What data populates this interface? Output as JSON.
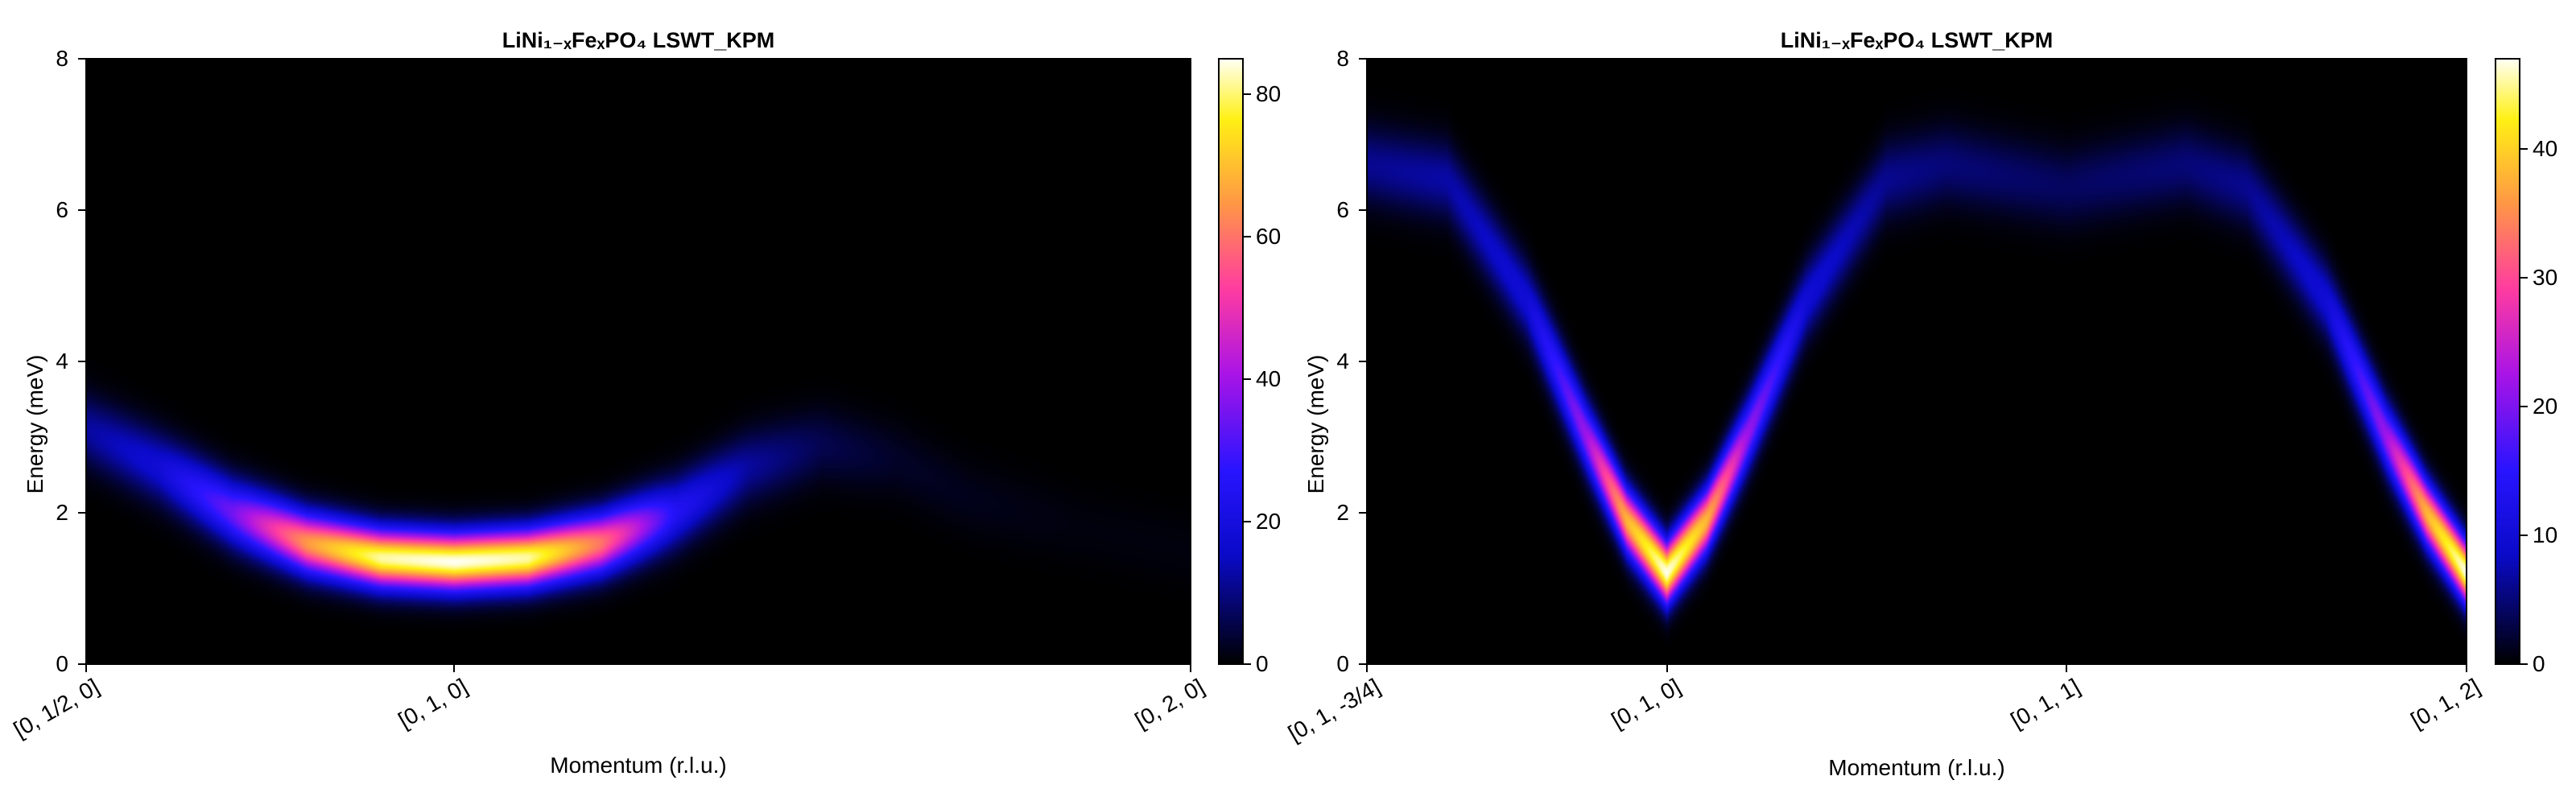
{
  "chart_data": [
    {
      "type": "heatmap",
      "title": "LiNi₁₋ₓFeₓPO₄ LSWT_KPM",
      "xlabel": "Momentum (r.l.u.)",
      "ylabel": "Energy (meV)",
      "ylim": [
        0,
        8
      ],
      "yticks": [
        "0",
        "2",
        "4",
        "6",
        "8"
      ],
      "xticks": [
        "[0, 1/2, 0]",
        "[0, 1, 0]",
        "[0, 2, 0]"
      ],
      "xtick_positions": [
        0,
        0.5,
        1.5
      ],
      "xlim": [
        0,
        1.5
      ],
      "colormap": "black-blue-magenta-yellow-white",
      "colorbar_range": [
        0,
        85
      ],
      "colorbar_ticks": [
        "0",
        "20",
        "40",
        "60",
        "80"
      ],
      "dispersion": [
        {
          "x": 0.0,
          "energy": 3.1,
          "intensity": 12
        },
        {
          "x": 0.1,
          "energy": 2.6,
          "intensity": 18
        },
        {
          "x": 0.2,
          "energy": 2.0,
          "intensity": 35
        },
        {
          "x": 0.3,
          "energy": 1.6,
          "intensity": 65
        },
        {
          "x": 0.4,
          "energy": 1.4,
          "intensity": 82
        },
        {
          "x": 0.5,
          "energy": 1.35,
          "intensity": 85
        },
        {
          "x": 0.6,
          "energy": 1.4,
          "intensity": 82
        },
        {
          "x": 0.7,
          "energy": 1.6,
          "intensity": 60
        },
        {
          "x": 0.8,
          "energy": 2.0,
          "intensity": 25
        },
        {
          "x": 0.9,
          "energy": 2.6,
          "intensity": 12
        },
        {
          "x": 1.0,
          "energy": 2.9,
          "intensity": 6
        },
        {
          "x": 1.1,
          "energy": 2.7,
          "intensity": 3
        },
        {
          "x": 1.2,
          "energy": 2.2,
          "intensity": 2
        },
        {
          "x": 1.35,
          "energy": 1.8,
          "intensity": 1
        },
        {
          "x": 1.5,
          "energy": 1.5,
          "intensity": 1
        }
      ]
    },
    {
      "type": "heatmap",
      "title": "LiNi₁₋ₓFeₓPO₄ LSWT_KPM",
      "xlabel": "Momentum (r.l.u.)",
      "ylabel": "Energy (meV)",
      "ylim": [
        0,
        8
      ],
      "yticks": [
        "0",
        "2",
        "4",
        "6",
        "8"
      ],
      "xticks": [
        "[0, 1, -3/4]",
        "[0, 1, 0]",
        "[0, 1, 1]",
        "[0, 1, 2]"
      ],
      "xtick_positions": [
        0,
        0.75,
        1.75,
        2.75
      ],
      "xlim": [
        0,
        2.75
      ],
      "colormap": "black-blue-magenta-yellow-white",
      "colorbar_range": [
        0,
        47
      ],
      "colorbar_ticks": [
        "0",
        "10",
        "20",
        "30",
        "40"
      ],
      "dispersion": [
        {
          "x": 0.0,
          "energy": 6.6,
          "intensity": 6
        },
        {
          "x": 0.2,
          "energy": 6.4,
          "intensity": 7
        },
        {
          "x": 0.4,
          "energy": 4.8,
          "intensity": 10
        },
        {
          "x": 0.55,
          "energy": 3.0,
          "intensity": 22
        },
        {
          "x": 0.65,
          "energy": 1.9,
          "intensity": 38
        },
        {
          "x": 0.75,
          "energy": 1.2,
          "intensity": 47
        },
        {
          "x": 0.85,
          "energy": 1.9,
          "intensity": 38
        },
        {
          "x": 0.95,
          "energy": 3.0,
          "intensity": 22
        },
        {
          "x": 1.1,
          "energy": 4.8,
          "intensity": 10
        },
        {
          "x": 1.3,
          "energy": 6.4,
          "intensity": 6
        },
        {
          "x": 1.45,
          "energy": 6.6,
          "intensity": 5
        },
        {
          "x": 1.75,
          "energy": 6.3,
          "intensity": 4
        },
        {
          "x": 2.05,
          "energy": 6.6,
          "intensity": 5
        },
        {
          "x": 2.2,
          "energy": 6.3,
          "intensity": 6
        },
        {
          "x": 2.4,
          "energy": 4.8,
          "intensity": 10
        },
        {
          "x": 2.55,
          "energy": 3.0,
          "intensity": 22
        },
        {
          "x": 2.65,
          "energy": 2.0,
          "intensity": 38
        },
        {
          "x": 2.75,
          "energy": 1.2,
          "intensity": 47
        }
      ]
    }
  ]
}
